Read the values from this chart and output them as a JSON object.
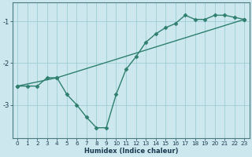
{
  "line1_x": [
    0,
    1,
    2,
    3,
    4,
    5,
    6,
    7,
    8,
    9,
    10,
    11,
    12,
    13,
    14,
    15,
    16,
    17,
    18,
    19,
    20,
    21,
    22,
    23
  ],
  "line1_y": [
    -2.55,
    -2.55,
    -2.55,
    -2.35,
    -2.35,
    -2.75,
    -3.0,
    -3.3,
    -3.55,
    -3.55,
    -2.75,
    -2.15,
    -1.85,
    -1.5,
    -1.3,
    -1.15,
    -1.05,
    -0.85,
    -0.95,
    -0.95,
    -0.85,
    -0.85,
    -0.9,
    -0.95
  ],
  "line2_x": [
    0,
    4,
    23
  ],
  "line2_y": [
    -2.55,
    -2.35,
    -0.95
  ],
  "color": "#2e7f6e",
  "bg_color": "#cce8ee",
  "grid_color": "#9ecdd6",
  "xlabel": "Humidex (Indice chaleur)",
  "ylim": [
    -3.8,
    -0.55
  ],
  "xlim": [
    -0.5,
    23.5
  ],
  "yticks": [
    -3,
    -2,
    -1
  ],
  "xticks": [
    0,
    1,
    2,
    3,
    4,
    5,
    6,
    7,
    8,
    9,
    10,
    11,
    12,
    13,
    14,
    15,
    16,
    17,
    18,
    19,
    20,
    21,
    22,
    23
  ],
  "marker": "D",
  "markersize": 2.5,
  "linewidth": 1.0,
  "xlabel_fontsize": 6.0,
  "tick_fontsize": 5.2,
  "ytick_fontsize": 6.0
}
